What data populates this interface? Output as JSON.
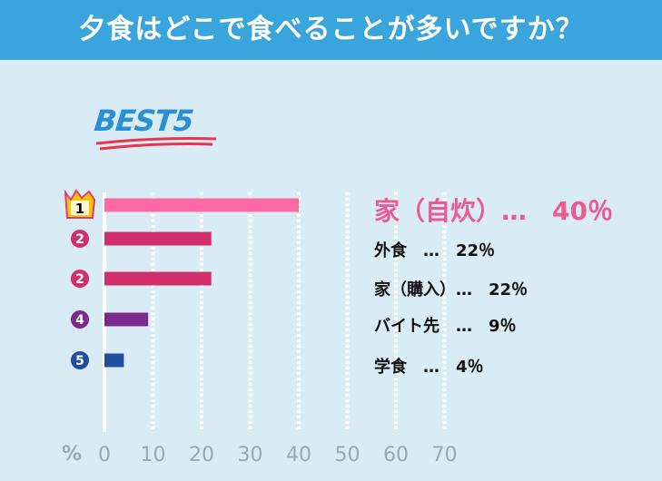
{
  "header": {
    "title": "夕食はどこで食べることが多いですか？"
  },
  "badge": {
    "text": "BEST5"
  },
  "chart_data": {
    "type": "bar",
    "orientation": "horizontal",
    "categories": [
      "家（自炊）",
      "外食",
      "家（購入）",
      "バイト先",
      "学食"
    ],
    "values": [
      40,
      22,
      22,
      9,
      4
    ],
    "value_labels": [
      "家（自炊）…　40％",
      "外食　…　22％",
      "家（購入）…　22％",
      "バイト先　…　9％",
      "学食　…　4％"
    ],
    "ranks": [
      "1",
      "2",
      "2",
      "4",
      "5"
    ],
    "bar_colors": [
      "#ff69a4",
      "#d12f6b",
      "#d12f6b",
      "#7a2a8c",
      "#1f4fa0"
    ],
    "rank_colors": [
      "#f3b400",
      "#d12f6b",
      "#d12f6b",
      "#7a2a8c",
      "#1f4fa0"
    ],
    "xlim": [
      0,
      70
    ],
    "xticks": [
      0,
      10,
      20,
      30,
      40,
      50,
      60,
      70
    ],
    "xticks_labels": [
      "0",
      "10",
      "20",
      "30",
      "40",
      "50",
      "60",
      "70"
    ],
    "xunit": "%",
    "grid": true
  }
}
